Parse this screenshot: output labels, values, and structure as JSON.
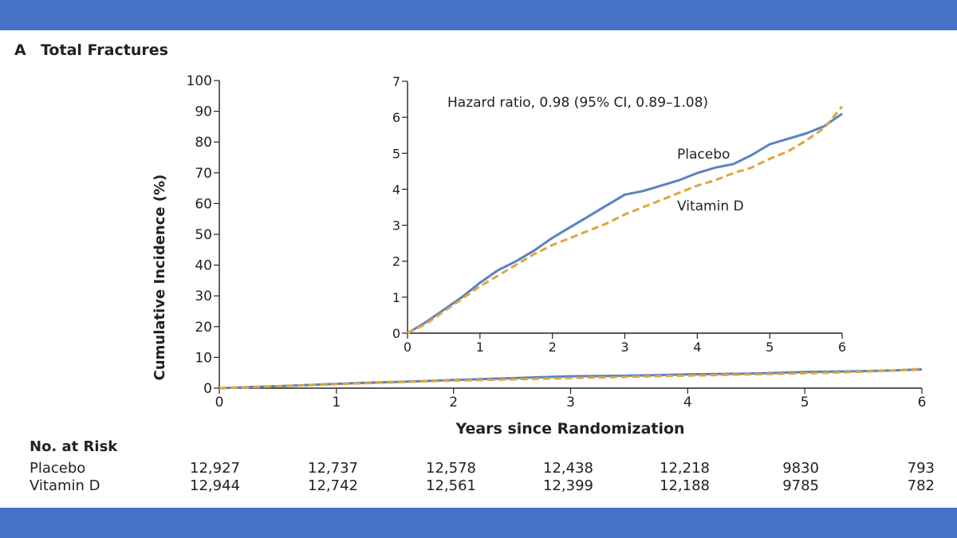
{
  "panel": {
    "letter": "A",
    "title": "Total Fractures"
  },
  "colors": {
    "placebo": "#5b82c0",
    "vitamin_d": "#e0a53a",
    "frame": "#4472c4"
  },
  "chart_data": [
    {
      "type": "line",
      "xlabel": "Years since Randomization",
      "ylabel": "Cumulative Incidence (%)",
      "xlim": [
        0,
        6
      ],
      "ylim": [
        0,
        100
      ],
      "xticks": [
        0,
        1,
        2,
        3,
        4,
        5,
        6
      ],
      "yticks": [
        0,
        10,
        20,
        30,
        40,
        50,
        60,
        70,
        80,
        90,
        100
      ],
      "series": [
        {
          "name": "Placebo",
          "style": "solid",
          "x": [
            0,
            0.25,
            0.5,
            0.75,
            1,
            1.25,
            1.5,
            1.75,
            2,
            2.25,
            2.5,
            2.75,
            3,
            3.25,
            3.5,
            3.75,
            4,
            4.25,
            4.5,
            4.75,
            5,
            5.25,
            5.5,
            5.75,
            6
          ],
          "y": [
            0,
            0.3,
            0.65,
            1.0,
            1.4,
            1.75,
            2.0,
            2.3,
            2.65,
            2.95,
            3.25,
            3.55,
            3.85,
            3.95,
            4.1,
            4.25,
            4.45,
            4.6,
            4.7,
            4.95,
            5.25,
            5.4,
            5.55,
            5.75,
            6.1
          ]
        },
        {
          "name": "Vitamin D",
          "style": "dashed",
          "x": [
            0,
            0.25,
            0.5,
            0.75,
            1,
            1.25,
            1.5,
            1.75,
            2,
            2.25,
            2.5,
            2.75,
            3,
            3.25,
            3.5,
            3.75,
            4,
            4.25,
            4.5,
            4.75,
            5,
            5.25,
            5.5,
            5.75,
            6
          ],
          "y": [
            0,
            0.25,
            0.6,
            0.95,
            1.3,
            1.6,
            1.9,
            2.2,
            2.45,
            2.65,
            2.85,
            3.05,
            3.3,
            3.5,
            3.7,
            3.9,
            4.1,
            4.25,
            4.45,
            4.6,
            4.85,
            5.05,
            5.35,
            5.7,
            6.3
          ]
        }
      ]
    },
    {
      "type": "line",
      "inset": true,
      "annotation": "Hazard ratio, 0.98 (95% CI, 0.89–1.08)",
      "xlim": [
        0,
        6
      ],
      "ylim": [
        0,
        7
      ],
      "xticks": [
        0,
        1,
        2,
        3,
        4,
        5,
        6
      ],
      "yticks": [
        0,
        1,
        2,
        3,
        4,
        5,
        6,
        7
      ],
      "series_labels": [
        "Placebo",
        "Vitamin D"
      ]
    }
  ],
  "risk_table": {
    "title": "No. at Risk",
    "rows": [
      {
        "label": "Placebo",
        "values": [
          "12,927",
          "12,737",
          "12,578",
          "12,438",
          "12,218",
          "9830",
          "793"
        ]
      },
      {
        "label": "Vitamin D",
        "values": [
          "12,944",
          "12,742",
          "12,561",
          "12,399",
          "12,188",
          "9785",
          "782"
        ]
      }
    ]
  }
}
